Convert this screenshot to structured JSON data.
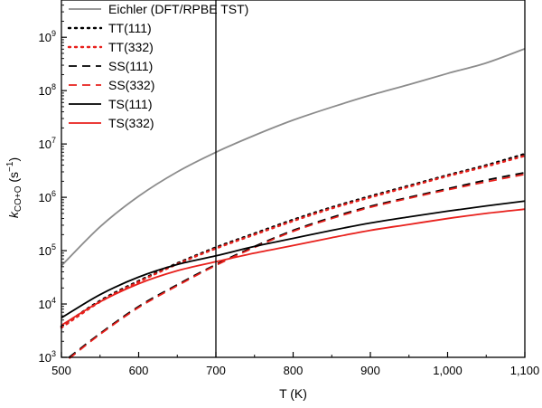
{
  "chart_data": {
    "type": "line",
    "title": "",
    "xlabel": "T (K)",
    "ylabel": {
      "main": "k",
      "sub": "CO+O",
      "unit_open": " (s",
      "unit_sup": "−1",
      "unit_close": ")"
    },
    "xlim": [
      500,
      1100
    ],
    "ylim": [
      1000,
      5000000000
    ],
    "yscale": "log",
    "grid": false,
    "legend_position": "top-left",
    "x_ticks": [
      {
        "value": 500,
        "label": "500"
      },
      {
        "value": 600,
        "label": "600"
      },
      {
        "value": 700,
        "label": "700"
      },
      {
        "value": 800,
        "label": "800"
      },
      {
        "value": 900,
        "label": "900"
      },
      {
        "value": 1000,
        "label": "1,000"
      },
      {
        "value": 1100,
        "label": "1,100"
      }
    ],
    "y_ticks": [
      {
        "value": 1000,
        "base": "10",
        "exp": "3"
      },
      {
        "value": 10000,
        "base": "10",
        "exp": "4"
      },
      {
        "value": 100000,
        "base": "10",
        "exp": "5"
      },
      {
        "value": 1000000,
        "base": "10",
        "exp": "6"
      },
      {
        "value": 10000000,
        "base": "10",
        "exp": "7"
      },
      {
        "value": 100000000,
        "base": "10",
        "exp": "8"
      },
      {
        "value": 1000000000,
        "base": "10",
        "exp": "9"
      }
    ],
    "vertical_line": {
      "x": 700
    },
    "series": [
      {
        "name": "Eichler (DFT/RPBE TST)",
        "color": "#8c8c8c",
        "dash": "solid",
        "x_range": [
          500,
          1100
        ],
        "x": [
          500,
          550,
          600,
          650,
          700,
          750,
          800,
          850,
          900,
          950,
          1000,
          1050,
          1100
        ],
        "y": [
          52000,
          280000,
          1050000,
          3000000,
          7000000,
          14500000,
          28000000,
          49000000,
          82000000,
          130000000,
          210000000,
          330000000,
          610000000
        ]
      },
      {
        "name": "TT(111)",
        "color": "#000000",
        "dash": "dotted",
        "x_range": [
          500,
          1100
        ],
        "x": [
          500,
          550,
          600,
          650,
          700,
          750,
          800,
          850,
          900,
          950,
          1000,
          1050,
          1100
        ],
        "y": [
          3800,
          11500,
          27000,
          58000,
          115000,
          210000,
          380000,
          650000,
          1050000,
          1650000,
          2600000,
          4000000,
          6500000
        ]
      },
      {
        "name": "TT(332)",
        "color": "#e8201c",
        "dash": "dotted",
        "x_range": [
          500,
          1100
        ],
        "x": [
          500,
          550,
          600,
          650,
          700,
          750,
          800,
          850,
          900,
          950,
          1000,
          1050,
          1100
        ],
        "y": [
          3600,
          11000,
          26000,
          56000,
          110000,
          200000,
          360000,
          620000,
          1000000,
          1580000,
          2500000,
          3800000,
          6000000
        ]
      },
      {
        "name": "SS(111)",
        "color": "#000000",
        "dash": "dashed",
        "x_range": [
          510,
          1100
        ],
        "x": [
          510,
          550,
          600,
          650,
          700,
          750,
          800,
          850,
          900,
          950,
          1000,
          1050,
          1100
        ],
        "y": [
          1000,
          2800,
          9000,
          23000,
          55000,
          120000,
          240000,
          420000,
          680000,
          1000000,
          1450000,
          2100000,
          2900000
        ]
      },
      {
        "name": "SS(332)",
        "color": "#e8201c",
        "dash": "dashed",
        "x_range": [
          510,
          1100
        ],
        "x": [
          510,
          550,
          600,
          650,
          700,
          750,
          800,
          850,
          900,
          950,
          1000,
          1050,
          1100
        ],
        "y": [
          950,
          2700,
          8600,
          22000,
          53000,
          115000,
          230000,
          400000,
          650000,
          960000,
          1380000,
          1950000,
          2700000
        ]
      },
      {
        "name": "TS(111)",
        "color": "#000000",
        "dash": "solid",
        "x_range": [
          500,
          1100
        ],
        "x": [
          500,
          550,
          600,
          650,
          700,
          750,
          800,
          850,
          900,
          950,
          1000,
          1050,
          1100
        ],
        "y": [
          5500,
          15000,
          32000,
          55000,
          80000,
          120000,
          170000,
          240000,
          330000,
          430000,
          550000,
          690000,
          850000
        ]
      },
      {
        "name": "TS(332)",
        "color": "#e8201c",
        "dash": "solid",
        "x_range": [
          500,
          1100
        ],
        "x": [
          500,
          550,
          600,
          650,
          700,
          750,
          800,
          850,
          900,
          950,
          1000,
          1050,
          1100
        ],
        "y": [
          4000,
          11000,
          24000,
          42000,
          62000,
          90000,
          125000,
          175000,
          240000,
          310000,
          400000,
          500000,
          600000
        ]
      }
    ]
  }
}
